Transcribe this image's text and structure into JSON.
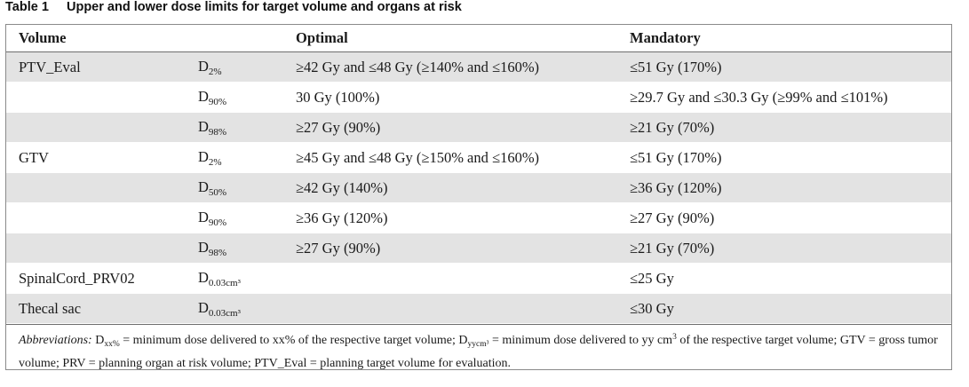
{
  "caption": {
    "label": "Table 1",
    "title": "Upper and lower dose limits for target volume and organs at risk"
  },
  "headers": [
    "Volume",
    "",
    "Optimal",
    "Mandatory"
  ],
  "rows": [
    {
      "volume": "PTV_Eval",
      "metric_base": "D",
      "metric_sub": "2%",
      "optimal": "≥42 Gy and ≤48 Gy (≥140% and ≤160%)",
      "mandatory": "≤51 Gy (170%)",
      "shaded": true
    },
    {
      "volume": "",
      "metric_base": "D",
      "metric_sub": "90%",
      "optimal": "30 Gy (100%)",
      "mandatory": "≥29.7 Gy and ≤30.3 Gy (≥99% and ≤101%)",
      "shaded": false
    },
    {
      "volume": "",
      "metric_base": "D",
      "metric_sub": "98%",
      "optimal": "≥27 Gy (90%)",
      "mandatory": "≥21 Gy (70%)",
      "shaded": true
    },
    {
      "volume": "GTV",
      "metric_base": "D",
      "metric_sub": "2%",
      "optimal": "≥45 Gy and ≤48 Gy (≥150% and ≤160%)",
      "mandatory": "≤51 Gy (170%)",
      "shaded": false
    },
    {
      "volume": "",
      "metric_base": "D",
      "metric_sub": "50%",
      "optimal": "≥42 Gy (140%)",
      "mandatory": "≥36 Gy (120%)",
      "shaded": true
    },
    {
      "volume": "",
      "metric_base": "D",
      "metric_sub": "90%",
      "optimal": "≥36 Gy (120%)",
      "mandatory": "≥27 Gy (90%)",
      "shaded": false
    },
    {
      "volume": "",
      "metric_base": "D",
      "metric_sub": "98%",
      "optimal": "≥27 Gy (90%)",
      "mandatory": "≥21 Gy (70%)",
      "shaded": true
    },
    {
      "volume": "SpinalCord_PRV02",
      "metric_base": "D",
      "metric_sub": "0.03cm³",
      "optimal": "",
      "mandatory": "≤25 Gy",
      "shaded": false
    },
    {
      "volume": "Thecal sac",
      "metric_base": "D",
      "metric_sub": "0.03cm³",
      "optimal": "",
      "mandatory": "≤30 Gy",
      "shaded": true
    }
  ],
  "abbreviations": {
    "label": "Abbreviations:",
    "d1_base": "D",
    "d1_sub": "xx%",
    "d1_def": " = minimum dose delivered to xx% of the respective target volume; ",
    "d2_base": "D",
    "d2_sub": "yycm³",
    "d2_def": " = minimum dose delivered to yy cm",
    "d2_sup": "3",
    "rest": " of the respective target volume; GTV = gross tumor volume; PRV = planning organ at risk volume; PTV_Eval = planning target volume for evaluation."
  }
}
